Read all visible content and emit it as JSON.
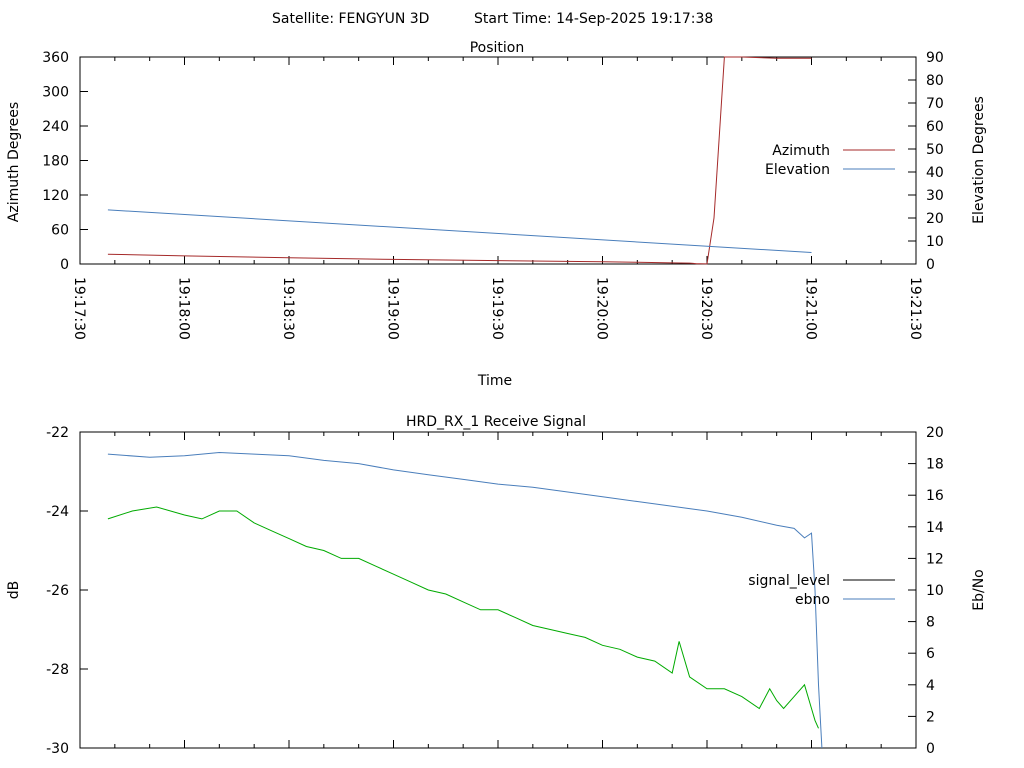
{
  "header": {
    "satellite_label": "Satellite: FENGYUN 3D",
    "start_time_label": "Start Time: 14-Sep-2025 19:17:38"
  },
  "chart_data": [
    {
      "type": "line",
      "title": "Position",
      "xlabel": "Time",
      "ylabel": "Azimuth Degrees",
      "y2label": "Elevation Degrees",
      "x_ticks": [
        "19:17:30",
        "19:18:00",
        "19:18:30",
        "19:19:00",
        "19:19:30",
        "19:20:00",
        "19:20:30",
        "19:21:00",
        "19:21:30"
      ],
      "xlim_seconds": [
        0,
        240
      ],
      "ylim": [
        0,
        360
      ],
      "y_ticks": [
        0,
        60,
        120,
        180,
        240,
        300,
        360
      ],
      "y2lim": [
        0,
        90
      ],
      "y2_ticks": [
        0,
        10,
        20,
        30,
        40,
        50,
        60,
        70,
        80,
        90
      ],
      "legend_position": "right",
      "series": [
        {
          "name": "Azimuth",
          "axis": "y",
          "color": "#a52a2a",
          "x": [
            8,
            30,
            60,
            90,
            120,
            150,
            160,
            170,
            175,
            176,
            177,
            178,
            180,
            182,
            185,
            190,
            195,
            200,
            205,
            210
          ],
          "y": [
            17,
            14,
            11,
            8,
            6,
            4,
            3,
            2,
            1.5,
            1,
            0.6,
            0.3,
            0.1,
            80,
            360,
            360,
            359,
            358,
            358,
            358
          ]
        },
        {
          "name": "Elevation",
          "axis": "y2",
          "color": "#4a7ebb",
          "x": [
            8,
            210
          ],
          "y": [
            23.5,
            5
          ]
        }
      ]
    },
    {
      "type": "line",
      "title": "HRD_RX_1 Receive Signal",
      "ylabel": "dB",
      "y2label": "Eb/No",
      "xlim_seconds": [
        0,
        240
      ],
      "ylim": [
        -30,
        -22
      ],
      "y_ticks": [
        -30,
        -28,
        -26,
        -24,
        -22
      ],
      "y2lim": [
        0,
        20
      ],
      "y2_ticks": [
        0,
        2,
        4,
        6,
        8,
        10,
        12,
        14,
        16,
        18,
        20
      ],
      "legend_position": "right",
      "series": [
        {
          "name": "signal_level",
          "axis": "y",
          "color": "#000000",
          "x": [],
          "y": []
        },
        {
          "name": "ebno",
          "axis": "y2",
          "color": "#4a7ebb",
          "x": [
            8,
            20,
            30,
            40,
            50,
            60,
            70,
            80,
            90,
            100,
            110,
            120,
            130,
            140,
            150,
            160,
            170,
            180,
            190,
            200,
            205,
            208,
            210,
            211,
            212,
            213
          ],
          "y": [
            18.6,
            18.4,
            18.5,
            18.7,
            18.6,
            18.5,
            18.2,
            18.0,
            17.6,
            17.3,
            17.0,
            16.7,
            16.5,
            16.2,
            15.9,
            15.6,
            15.3,
            15.0,
            14.6,
            14.1,
            13.9,
            13.3,
            13.6,
            10,
            4,
            0
          ]
        },
        {
          "name": "",
          "axis": "y",
          "color": "#00aa00",
          "x": [
            8,
            15,
            22,
            30,
            35,
            40,
            45,
            50,
            55,
            60,
            65,
            70,
            75,
            80,
            85,
            90,
            95,
            100,
            105,
            110,
            115,
            120,
            125,
            130,
            135,
            140,
            145,
            150,
            155,
            160,
            165,
            170,
            172,
            175,
            180,
            185,
            190,
            195,
            198,
            200,
            202,
            205,
            208,
            210,
            211,
            212
          ],
          "y": [
            -24.2,
            -24.0,
            -23.9,
            -24.1,
            -24.2,
            -24.0,
            -24.0,
            -24.3,
            -24.5,
            -24.7,
            -24.9,
            -25.0,
            -25.2,
            -25.2,
            -25.4,
            -25.6,
            -25.8,
            -26.0,
            -26.1,
            -26.3,
            -26.5,
            -26.5,
            -26.7,
            -26.9,
            -27.0,
            -27.1,
            -27.2,
            -27.4,
            -27.5,
            -27.7,
            -27.8,
            -28.1,
            -27.3,
            -28.2,
            -28.5,
            -28.5,
            -28.7,
            -29.0,
            -28.5,
            -28.8,
            -29.0,
            -28.7,
            -28.4,
            -29.0,
            -29.3,
            -29.5
          ]
        }
      ]
    }
  ]
}
